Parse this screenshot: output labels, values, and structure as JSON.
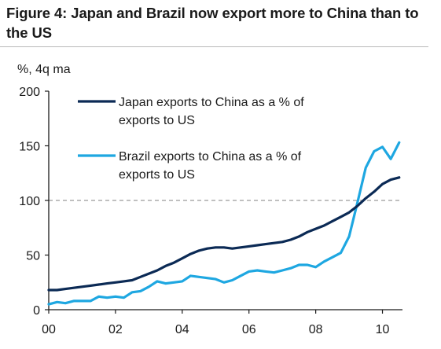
{
  "title": "Figure 4: Japan and Brazil now export more to China than to the US",
  "colors": {
    "japan": "#0b2a55",
    "brazil": "#1ea7e1",
    "reference": "#9a9a9a",
    "axis": "#1a1a1a"
  },
  "chart_data": {
    "type": "line",
    "ylabel": "%, 4q ma",
    "ylim": [
      0,
      200
    ],
    "yticks": [
      "0",
      "50",
      "100",
      "150",
      "200"
    ],
    "xlim": [
      2000,
      2010.6
    ],
    "xticks": [
      {
        "value": 2000,
        "label": "00"
      },
      {
        "value": 2002,
        "label": "02"
      },
      {
        "value": 2004,
        "label": "04"
      },
      {
        "value": 2006,
        "label": "06"
      },
      {
        "value": 2008,
        "label": "08"
      },
      {
        "value": 2010,
        "label": "10"
      }
    ],
    "reference_line": 100,
    "legend": [
      {
        "lines": [
          "Japan exports to China as a % of",
          "exports to US"
        ]
      },
      {
        "lines": [
          "Brazil exports to China as a % of",
          "exports to US"
        ]
      }
    ],
    "series": [
      {
        "name": "Japan exports to China as a % of exports to US",
        "color": "#0b2a55",
        "x": [
          2000,
          2000.25,
          2000.5,
          2000.75,
          2001,
          2001.25,
          2001.5,
          2001.75,
          2002,
          2002.25,
          2002.5,
          2002.75,
          2003,
          2003.25,
          2003.5,
          2003.75,
          2004,
          2004.25,
          2004.5,
          2004.75,
          2005,
          2005.25,
          2005.5,
          2005.75,
          2006,
          2006.25,
          2006.5,
          2006.75,
          2007,
          2007.25,
          2007.5,
          2007.75,
          2008,
          2008.25,
          2008.5,
          2008.75,
          2009,
          2009.25,
          2009.5,
          2009.75,
          2010,
          2010.25,
          2010.5
        ],
        "values": [
          18,
          18,
          19,
          20,
          21,
          22,
          23,
          24,
          25,
          26,
          27,
          30,
          33,
          36,
          40,
          43,
          47,
          51,
          54,
          56,
          57,
          57,
          56,
          57,
          58,
          59,
          60,
          61,
          62,
          64,
          67,
          71,
          74,
          77,
          81,
          85,
          89,
          95,
          102,
          108,
          115,
          119,
          121
        ]
      },
      {
        "name": "Brazil exports to China as a % of exports to US",
        "color": "#1ea7e1",
        "x": [
          2000,
          2000.25,
          2000.5,
          2000.75,
          2001,
          2001.25,
          2001.5,
          2001.75,
          2002,
          2002.25,
          2002.5,
          2002.75,
          2003,
          2003.25,
          2003.5,
          2003.75,
          2004,
          2004.25,
          2004.5,
          2004.75,
          2005,
          2005.25,
          2005.5,
          2005.75,
          2006,
          2006.25,
          2006.5,
          2006.75,
          2007,
          2007.25,
          2007.5,
          2007.75,
          2008,
          2008.25,
          2008.5,
          2008.75,
          2009,
          2009.25,
          2009.5,
          2009.75,
          2010,
          2010.25,
          2010.5
        ],
        "values": [
          5,
          7,
          6,
          8,
          8,
          8,
          12,
          11,
          12,
          11,
          16,
          17,
          21,
          26,
          24,
          25,
          26,
          31,
          30,
          29,
          28,
          25,
          27,
          31,
          35,
          36,
          35,
          34,
          36,
          38,
          41,
          41,
          39,
          44,
          48,
          52,
          67,
          98,
          130,
          145,
          149,
          138,
          153
        ]
      }
    ]
  }
}
